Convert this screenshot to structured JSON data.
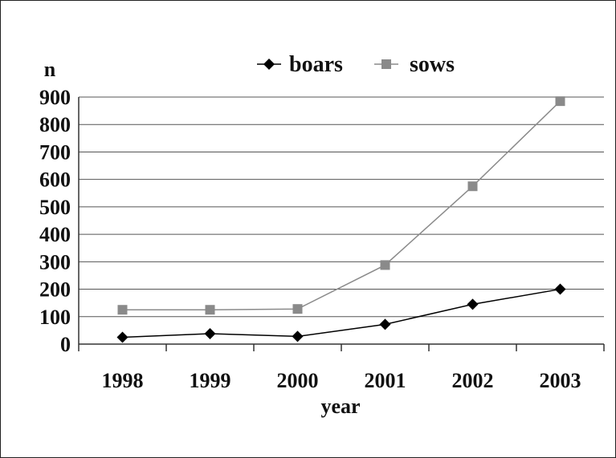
{
  "chart_data": {
    "type": "line",
    "categories": [
      "1998",
      "1999",
      "2000",
      "2001",
      "2002",
      "2003"
    ],
    "series": [
      {
        "name": "boars",
        "values": [
          25,
          38,
          28,
          72,
          145,
          200
        ],
        "color": "#000000",
        "marker": "diamond"
      },
      {
        "name": "sows",
        "values": [
          125,
          125,
          128,
          288,
          575,
          885
        ],
        "color": "#8a8a8a",
        "marker": "square"
      }
    ],
    "title": "",
    "xlabel": "year",
    "ylabel": "n",
    "ylim": [
      0,
      900
    ],
    "yticks": [
      "0",
      "100",
      "200",
      "300",
      "400",
      "500",
      "600",
      "700",
      "800",
      "900"
    ],
    "grid": "horizontal",
    "legend_position": "top"
  }
}
